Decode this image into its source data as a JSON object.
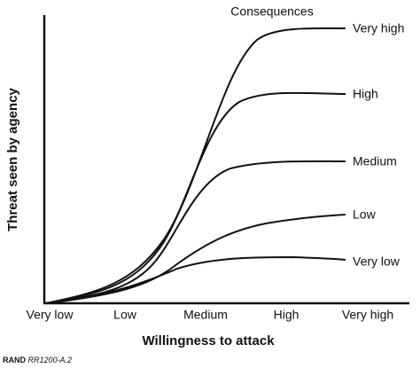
{
  "legend_title": "Consequences",
  "curve_labels": [
    "Very high",
    "High",
    "Medium",
    "Low",
    "Very low"
  ],
  "x_labels": [
    "Very low",
    "Low",
    "Medium",
    "High",
    "Very high"
  ],
  "x_axis_label": "Willingness to attack",
  "y_axis_label": "Threat seen by agency",
  "credit": {
    "org": "RAND",
    "code": "RR1200-A.2"
  }
}
